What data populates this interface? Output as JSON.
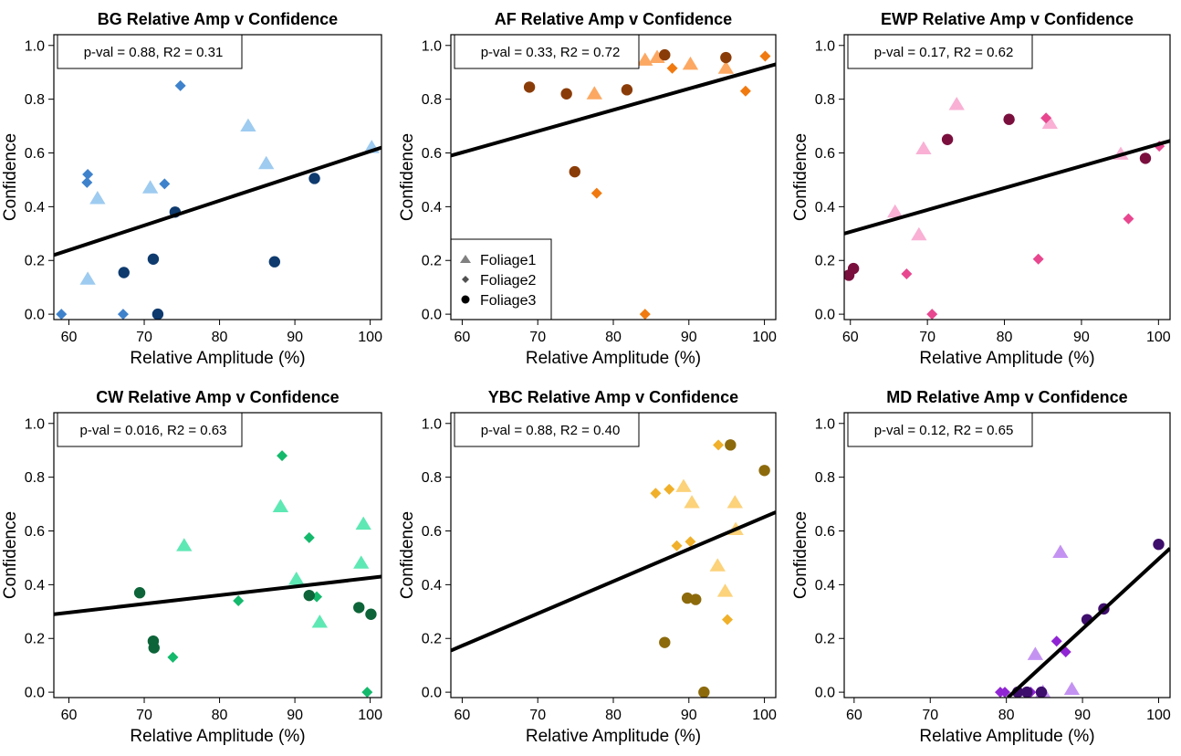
{
  "chart_data": [
    {
      "type": "scatter",
      "title": "BG Relative Amp v Confidence",
      "xlabel": "Relative Amplitude (%)",
      "ylabel": "Confidence",
      "stats": "p-val = 0.88, R2 = 0.31",
      "xlim": [
        58,
        101.5
      ],
      "ylim": [
        -0.02,
        1.04
      ],
      "xticks": [
        60,
        70,
        80,
        90,
        100
      ],
      "yticks": [
        0.0,
        0.2,
        0.4,
        0.6,
        0.8,
        1.0
      ],
      "fit": {
        "x": [
          58,
          101.5
        ],
        "y": [
          0.22,
          0.62
        ]
      },
      "colors": {
        "Foliage1": "#9ecbf0",
        "Foliage2": "#3f82cc",
        "Foliage3": "#0e3a6e"
      },
      "series": [
        {
          "name": "Foliage1",
          "marker": "triangle",
          "x": [
            62.5,
            63.8,
            70.8,
            83.8,
            86.2,
            100.2
          ],
          "y": [
            0.13,
            0.43,
            0.47,
            0.7,
            0.56,
            0.62
          ]
        },
        {
          "name": "Foliage2",
          "marker": "diamond",
          "x": [
            59,
            62.4,
            62.5,
            67.2,
            72.7,
            74.8
          ],
          "y": [
            0.0,
            0.49,
            0.52,
            0.0,
            0.485,
            0.85
          ]
        },
        {
          "name": "Foliage3",
          "marker": "circle",
          "x": [
            67.3,
            71.2,
            71.8,
            74.1,
            87.3,
            92.6
          ],
          "y": [
            0.155,
            0.205,
            0.0,
            0.38,
            0.195,
            0.505
          ]
        }
      ]
    },
    {
      "type": "scatter",
      "title": "AF Relative Amp v Confidence",
      "xlabel": "Relative Amplitude (%)",
      "ylabel": "Confidence",
      "stats": "p-val = 0.33, R2 = 0.72",
      "xlim": [
        58.5,
        101.5
      ],
      "ylim": [
        -0.02,
        1.04
      ],
      "xticks": [
        60,
        70,
        80,
        90,
        100
      ],
      "yticks": [
        0.0,
        0.2,
        0.4,
        0.6,
        0.8,
        1.0
      ],
      "fit": {
        "x": [
          58.5,
          101.5
        ],
        "y": [
          0.59,
          0.93
        ]
      },
      "legend": {
        "position": "bottom-left",
        "items": [
          "Foliage1",
          "Foliage2",
          "Foliage3"
        ]
      },
      "colors": {
        "Foliage1": "#fca862",
        "Foliage2": "#f07a10",
        "Foliage3": "#8a3c08"
      },
      "series": [
        {
          "name": "Foliage1",
          "marker": "triangle",
          "x": [
            77.5,
            84.2,
            85.8,
            90.2,
            94.9
          ],
          "y": [
            0.82,
            0.945,
            0.955,
            0.93,
            0.915
          ]
        },
        {
          "name": "Foliage2",
          "marker": "diamond",
          "x": [
            77.8,
            84.2,
            87.8,
            97.5,
            100.1
          ],
          "y": [
            0.45,
            0.0,
            0.915,
            0.83,
            0.96
          ]
        },
        {
          "name": "Foliage3",
          "marker": "circle",
          "x": [
            68.9,
            73.8,
            74.9,
            81.8,
            86.8,
            94.9
          ],
          "y": [
            0.845,
            0.82,
            0.53,
            0.835,
            0.965,
            0.955
          ]
        }
      ]
    },
    {
      "type": "scatter",
      "title": "EWP Relative Amp v Confidence",
      "xlabel": "Relative Amplitude (%)",
      "ylabel": "Confidence",
      "stats": "p-val = 0.17, R2 = 0.62",
      "xlim": [
        59.2,
        101.5
      ],
      "ylim": [
        -0.02,
        1.04
      ],
      "xticks": [
        60,
        70,
        80,
        90,
        100
      ],
      "yticks": [
        0.0,
        0.2,
        0.4,
        0.6,
        0.8,
        1.0
      ],
      "fit": {
        "x": [
          59.2,
          101.5
        ],
        "y": [
          0.3,
          0.645
        ]
      },
      "colors": {
        "Foliage1": "#f9b0d4",
        "Foliage2": "#e8478f",
        "Foliage3": "#7a0f3e"
      },
      "series": [
        {
          "name": "Foliage1",
          "marker": "triangle",
          "x": [
            65.8,
            68.9,
            69.5,
            73.8,
            85.9,
            95.1
          ],
          "y": [
            0.38,
            0.295,
            0.615,
            0.78,
            0.71,
            0.595
          ]
        },
        {
          "name": "Foliage2",
          "marker": "diamond",
          "x": [
            67.3,
            70.6,
            84.4,
            85.4,
            96.1,
            100.1
          ],
          "y": [
            0.15,
            0.0,
            0.205,
            0.73,
            0.355,
            0.625
          ]
        },
        {
          "name": "Foliage3",
          "marker": "circle",
          "x": [
            59.8,
            60.4,
            72.6,
            80.6,
            98.3
          ],
          "y": [
            0.145,
            0.17,
            0.65,
            0.725,
            0.58
          ]
        }
      ]
    },
    {
      "type": "scatter",
      "title": "CW Relative Amp v Confidence",
      "xlabel": "Relative Amplitude (%)",
      "ylabel": "Confidence",
      "stats": "p-val = 0.016, R2 = 0.63",
      "xlim": [
        58,
        101.5
      ],
      "ylim": [
        -0.02,
        1.04
      ],
      "xticks": [
        60,
        70,
        80,
        90,
        100
      ],
      "yticks": [
        0.0,
        0.2,
        0.4,
        0.6,
        0.8,
        1.0
      ],
      "fit": {
        "x": [
          58,
          101.5
        ],
        "y": [
          0.29,
          0.43
        ]
      },
      "colors": {
        "Foliage1": "#5ee8b4",
        "Foliage2": "#14b96c",
        "Foliage3": "#0c6438"
      },
      "series": [
        {
          "name": "Foliage1",
          "marker": "triangle",
          "x": [
            75.3,
            88.1,
            90.2,
            93.3,
            98.8,
            99.1
          ],
          "y": [
            0.545,
            0.69,
            0.42,
            0.26,
            0.48,
            0.625
          ]
        },
        {
          "name": "Foliage2",
          "marker": "diamond",
          "x": [
            73.8,
            82.5,
            88.3,
            91.9,
            92.9,
            99.6
          ],
          "y": [
            0.13,
            0.34,
            0.88,
            0.575,
            0.355,
            0.0
          ]
        },
        {
          "name": "Foliage3",
          "marker": "circle",
          "x": [
            69.4,
            71.2,
            71.3,
            91.9,
            98.5,
            100.1
          ],
          "y": [
            0.37,
            0.19,
            0.165,
            0.36,
            0.315,
            0.29
          ]
        }
      ]
    },
    {
      "type": "scatter",
      "title": "YBC Relative Amp v Confidence",
      "xlabel": "Relative Amplitude (%)",
      "ylabel": "Confidence",
      "stats": "p-val = 0.88, R2 = 0.40",
      "xlim": [
        58.5,
        101.5
      ],
      "ylim": [
        -0.02,
        1.04
      ],
      "xticks": [
        60,
        70,
        80,
        90,
        100
      ],
      "yticks": [
        0.0,
        0.2,
        0.4,
        0.6,
        0.8,
        1.0
      ],
      "fit": {
        "x": [
          58.5,
          101.5
        ],
        "y": [
          0.155,
          0.67
        ]
      },
      "colors": {
        "Foliage1": "#fcd27a",
        "Foliage2": "#f0b02a",
        "Foliage3": "#8c6a0c"
      },
      "series": [
        {
          "name": "Foliage1",
          "marker": "triangle",
          "x": [
            89.3,
            90.4,
            93.8,
            94.8,
            96.1,
            96.2
          ],
          "y": [
            0.765,
            0.705,
            0.47,
            0.375,
            0.705,
            0.605
          ]
        },
        {
          "name": "Foliage2",
          "marker": "diamond",
          "x": [
            85.6,
            87.4,
            88.4,
            90.2,
            93.9,
            95.1
          ],
          "y": [
            0.74,
            0.755,
            0.545,
            0.56,
            0.92,
            0.27
          ]
        },
        {
          "name": "Foliage3",
          "marker": "circle",
          "x": [
            86.8,
            89.8,
            90.9,
            92.0,
            95.5,
            100.0
          ],
          "y": [
            0.185,
            0.35,
            0.345,
            0.0,
            0.92,
            0.825
          ]
        }
      ]
    },
    {
      "type": "scatter",
      "title": "MD Relative Amp v Confidence",
      "xlabel": "Relative Amplitude (%)",
      "ylabel": "Confidence",
      "stats": "p-val = 0.12, R2 = 0.65",
      "xlim": [
        58.7,
        101.5
      ],
      "ylim": [
        -0.02,
        1.04
      ],
      "xticks": [
        60,
        70,
        80,
        90,
        100
      ],
      "yticks": [
        0.0,
        0.2,
        0.4,
        0.6,
        0.8,
        1.0
      ],
      "fit": {
        "x": [
          80.2,
          101.5
        ],
        "y": [
          -0.02,
          0.535
        ]
      },
      "colors": {
        "Foliage1": "#c493f2",
        "Foliage2": "#9025d4",
        "Foliage3": "#3e0e6c"
      },
      "series": [
        {
          "name": "Foliage1",
          "marker": "triangle",
          "x": [
            83.8,
            84.8,
            87.1,
            88.6
          ],
          "y": [
            0.14,
            0.0,
            0.52,
            0.01
          ]
        },
        {
          "name": "Foliage2",
          "marker": "diamond",
          "x": [
            79.2,
            79.8,
            83.2,
            86.6,
            87.8
          ],
          "y": [
            0.0,
            0.0,
            0.0,
            0.19,
            0.15
          ]
        },
        {
          "name": "Foliage3",
          "marker": "circle",
          "x": [
            81.5,
            82.7,
            84.6,
            90.6,
            92.8,
            100.0
          ],
          "y": [
            0.0,
            0.0,
            0.0,
            0.27,
            0.31,
            0.55
          ]
        }
      ]
    }
  ]
}
